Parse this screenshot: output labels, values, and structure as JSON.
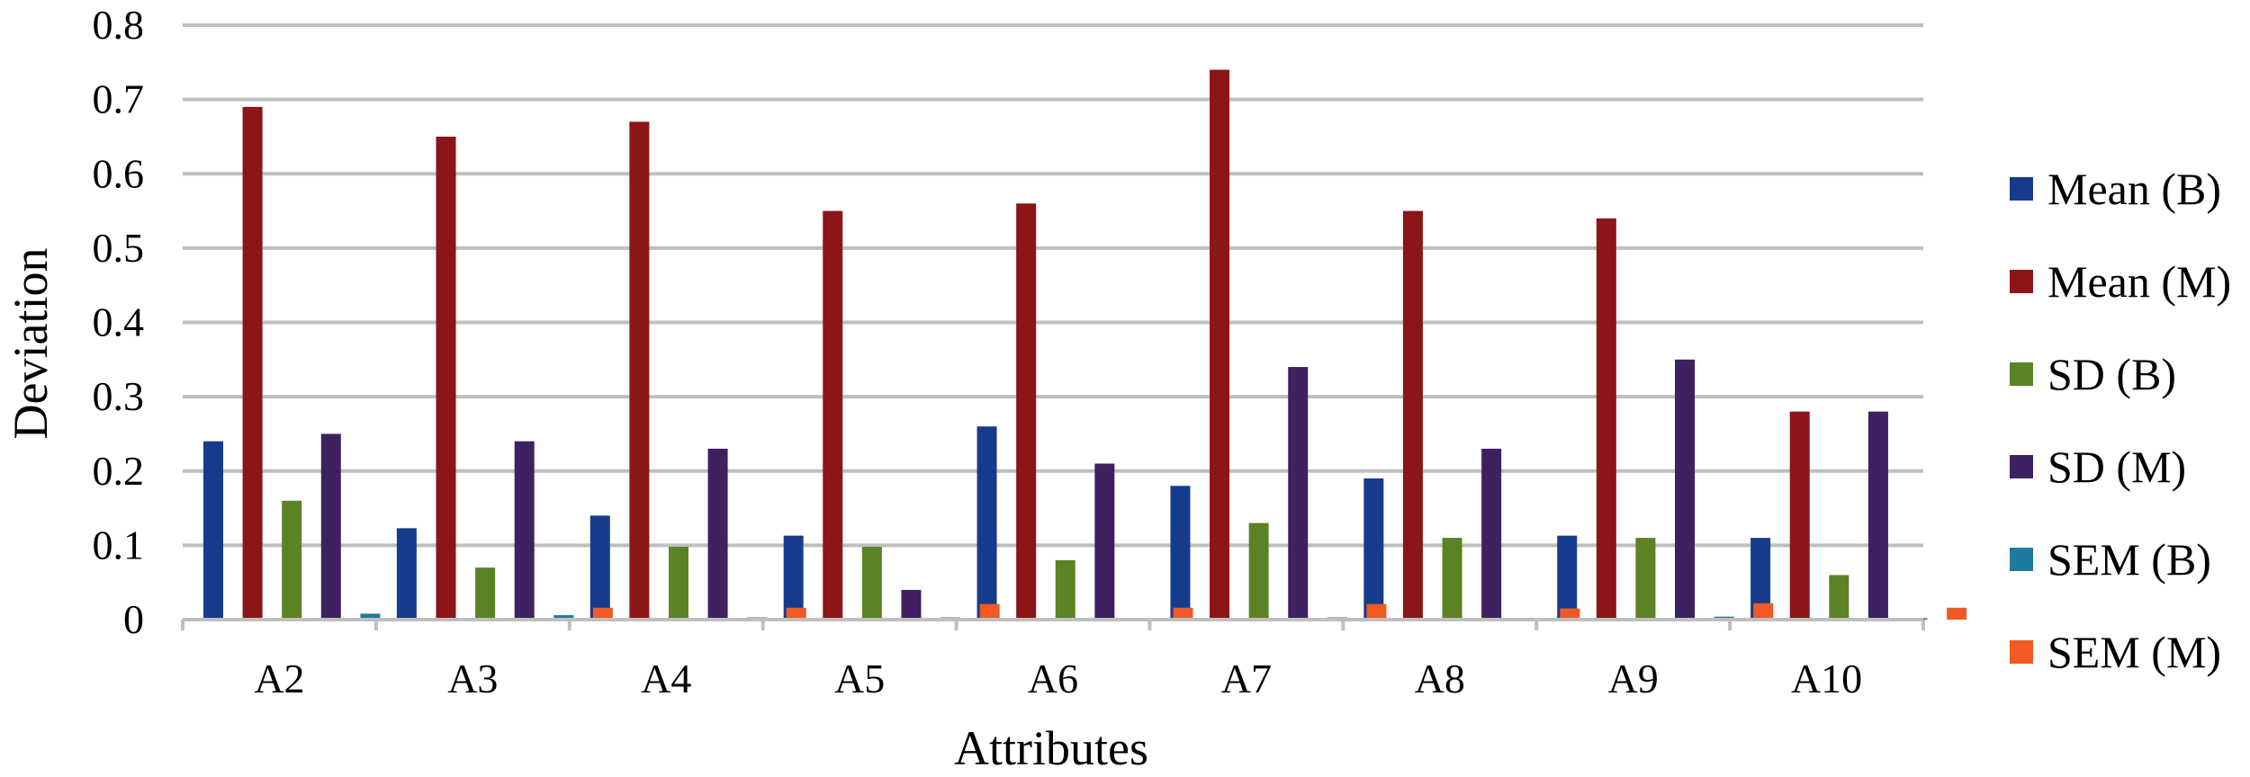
{
  "chart_data": {
    "type": "bar",
    "title": "",
    "xlabel": "Attributes",
    "ylabel": "Deviation",
    "ylim": [
      0,
      0.8
    ],
    "yticks": [
      "0",
      "0.1",
      "0.2",
      "0.3",
      "0.4",
      "0.5",
      "0.6",
      "0.7",
      "0.8"
    ],
    "grid": true,
    "legend_position": "right",
    "categories": [
      "A2",
      "A3",
      "A4",
      "A5",
      "A6",
      "A7",
      "A8",
      "A9",
      "A10"
    ],
    "series": [
      {
        "name": "Mean (B)",
        "color": "#173B8C",
        "values": [
          0.24,
          0.123,
          0.14,
          0.113,
          0.26,
          0.18,
          0.19,
          0.113,
          0.11
        ]
      },
      {
        "name": "Mean (M)",
        "color": "#8B1517",
        "values": [
          0.69,
          0.65,
          0.67,
          0.55,
          0.56,
          0.74,
          0.55,
          0.54,
          0.28
        ]
      },
      {
        "name": "SD (B)",
        "color": "#5B8224",
        "values": [
          0.16,
          0.07,
          0.098,
          0.098,
          0.08,
          0.13,
          0.11,
          0.11,
          0.06
        ]
      },
      {
        "name": "SD (M)",
        "color": "#3E2161",
        "values": [
          0.25,
          0.24,
          0.23,
          0.04,
          0.21,
          0.34,
          0.23,
          0.35,
          0.28
        ]
      },
      {
        "name": "SEM (B)",
        "color": "#1E7A9E",
        "values": [
          0.008,
          0.006,
          0.003,
          0.003,
          0.002,
          0.003,
          0.002,
          0.004,
          0.002
        ]
      },
      {
        "name": "SEM (M)",
        "color": "#F15A22",
        "values": [
          0.001,
          0.016,
          0.016,
          0.021,
          0.016,
          0.021,
          0.015,
          0.022,
          0.016
        ]
      }
    ]
  }
}
